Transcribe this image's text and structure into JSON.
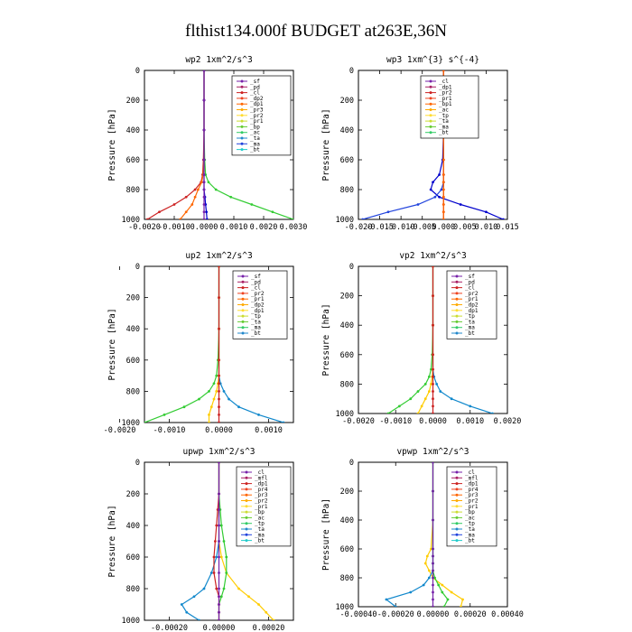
{
  "title": "flthist134.000f  BUDGET at263E,36N",
  "chart_data": [
    {
      "type": "line",
      "title": "wp2   1xm^2/s^3",
      "ylabel": "Pressure [hPa]",
      "xlim": [
        -0.002,
        0.003
      ],
      "ylim": [
        0,
        1000
      ],
      "y_inverted": true,
      "xticks": [
        "-0.0020",
        "-0.0010",
        "0.0000",
        "0.0010",
        "0.0020",
        "0.0030"
      ],
      "xtick_values": [
        -0.002,
        -0.001,
        0.0,
        0.001,
        0.002,
        0.003
      ],
      "yticks": [
        0,
        200,
        400,
        600,
        800,
        1000
      ],
      "legend": [
        "_sf",
        "_pd",
        "_cl",
        "_dp2",
        "_dp1",
        "_pr3",
        "_pr2",
        "_pr1",
        "_bp",
        "_ac",
        "_ta",
        "_ma",
        "_bt"
      ],
      "y": [
        0,
        200,
        400,
        600,
        700,
        750,
        800,
        850,
        900,
        950,
        1000
      ],
      "series": [
        {
          "label": "_pr1",
          "color": "#33cc33",
          "x": [
            0,
            0,
            0,
            2e-05,
            5e-05,
            0.00015,
            0.0004,
            0.0009,
            0.0016,
            0.0023,
            0.003
          ]
        },
        {
          "label": "_dp1",
          "color": "#cc2222",
          "x": [
            0,
            0,
            0,
            -2e-05,
            -5e-05,
            -0.0001,
            -0.0003,
            -0.0006,
            -0.001,
            -0.0015,
            -0.0019
          ]
        },
        {
          "label": "_pr3",
          "color": "#ff6600",
          "x": [
            0,
            0,
            0,
            0,
            -3e-05,
            -8e-05,
            -0.0002,
            -0.0003,
            -0.0004,
            -0.0006,
            -0.0008
          ]
        },
        {
          "label": "_bt",
          "color": "#0000cc",
          "x": [
            0,
            0,
            0,
            0,
            0,
            0,
            0,
            3e-05,
            5e-05,
            8e-05,
            0.0001
          ]
        },
        {
          "label": "_sf",
          "color": "#7722aa",
          "x": [
            0,
            0,
            0,
            0,
            0,
            0,
            0,
            0,
            0,
            0,
            0
          ]
        }
      ]
    },
    {
      "type": "line",
      "title": "wp3   1xm^{3} s^{-4}",
      "ylabel": "Pressure [hPa]",
      "xlim": [
        -0.02,
        0.015
      ],
      "ylim": [
        0,
        1000
      ],
      "y_inverted": true,
      "xticks": [
        "-0.020",
        "-0.015",
        "-0.010",
        "-0.005",
        "0.000",
        "0.005",
        "0.010",
        "0.015"
      ],
      "xtick_values": [
        -0.02,
        -0.015,
        -0.01,
        -0.005,
        0.0,
        0.005,
        0.01,
        0.015
      ],
      "yticks": [
        0,
        200,
        400,
        600,
        800,
        1000
      ],
      "legend": [
        "_cl",
        "_dp1",
        "_pr2",
        "_pr1",
        "_bp1",
        "_ac",
        "_tp",
        "_ta",
        "_ma",
        "_bt"
      ],
      "y": [
        0,
        200,
        400,
        600,
        700,
        750,
        800,
        850,
        900,
        950,
        1000
      ],
      "series": [
        {
          "label": "_ta",
          "color": "#0000cc",
          "x": [
            0,
            0,
            0,
            -0.0002,
            -0.001,
            -0.0025,
            -0.003,
            -0.001,
            0.004,
            0.01,
            0.014
          ]
        },
        {
          "label": "_tp",
          "color": "#2244dd",
          "x": [
            0,
            0,
            0,
            0,
            0,
            0,
            -0.0005,
            -0.002,
            -0.006,
            -0.013,
            -0.019
          ]
        },
        {
          "label": "_cl",
          "color": "#cc2222",
          "x": [
            0,
            0,
            0,
            0,
            0,
            0,
            0,
            0,
            0,
            0,
            0
          ]
        },
        {
          "label": "_pr1",
          "color": "#ff6600",
          "x": [
            0,
            0,
            0,
            0,
            0,
            0,
            0,
            0,
            0,
            0,
            0
          ]
        }
      ]
    },
    {
      "type": "line",
      "title": "up2   1xm^2/s^3",
      "ylabel": "Pressure [hPa]",
      "xlim": [
        -0.0015,
        0.0015
      ],
      "ylim": [
        0,
        1000
      ],
      "y_inverted": true,
      "xticks": [
        "-0.0020",
        "-0.0010",
        "0.0000",
        "0.0010"
      ],
      "xtick_values": [
        -0.002,
        -0.001,
        0.0,
        0.001
      ],
      "yticks": [
        0,
        200,
        400,
        600,
        800,
        1000
      ],
      "legend": [
        "_sf",
        "_pd",
        "_cl",
        "_pr2",
        "_pr1",
        "_dp2",
        "_dp1",
        "_tp",
        "_ta",
        "_ma",
        "_bt"
      ],
      "y": [
        0,
        200,
        400,
        600,
        700,
        750,
        800,
        850,
        900,
        950,
        1000
      ],
      "series": [
        {
          "label": "_dp1",
          "color": "#33cc33",
          "x": [
            0,
            0,
            0,
            -2e-05,
            -5e-05,
            -0.0001,
            -0.0002,
            -0.0004,
            -0.0007,
            -0.0011,
            -0.0015
          ]
        },
        {
          "label": "_ta",
          "color": "#1188cc",
          "x": [
            0,
            0,
            0,
            0,
            0,
            3e-05,
            0.0001,
            0.0002,
            0.0004,
            0.0008,
            0.0013
          ]
        },
        {
          "label": "_pr1",
          "color": "#ffcc00",
          "x": [
            0,
            0,
            0,
            0,
            0,
            -2e-05,
            -5e-05,
            -0.0001,
            -0.00015,
            -0.0002,
            -0.0002
          ]
        },
        {
          "label": "_cl",
          "color": "#cc2222",
          "x": [
            0,
            0,
            0,
            0,
            0,
            0,
            0,
            0,
            0,
            0,
            0
          ]
        }
      ]
    },
    {
      "type": "line",
      "title": "vp2   1xm^2/s^3",
      "ylabel": "Pressure [hPa]",
      "xlim": [
        -0.002,
        0.002
      ],
      "ylim": [
        0,
        1000
      ],
      "y_inverted": true,
      "xticks": [
        "-0.0020",
        "-0.0010",
        "0.0000",
        "0.0010",
        "0.0020"
      ],
      "xtick_values": [
        -0.002,
        -0.001,
        0.0,
        0.001,
        0.002
      ],
      "yticks": [
        0,
        200,
        400,
        600,
        800,
        1000
      ],
      "legend": [
        "_sf",
        "_pd",
        "_cl",
        "_pr2",
        "_pr1",
        "_dp2",
        "_dp1",
        "_tp",
        "_ta",
        "_ma",
        "_bt"
      ],
      "y": [
        0,
        200,
        400,
        600,
        700,
        750,
        800,
        850,
        900,
        950,
        1000
      ],
      "series": [
        {
          "label": "_dp1",
          "color": "#33cc33",
          "x": [
            0,
            0,
            0,
            -2e-05,
            -5e-05,
            -0.0001,
            -0.0002,
            -0.0004,
            -0.0006,
            -0.0009,
            -0.0012
          ]
        },
        {
          "label": "_ta",
          "color": "#1188cc",
          "x": [
            0,
            0,
            0,
            0,
            0,
            3e-05,
            0.0001,
            0.0002,
            0.0005,
            0.001,
            0.0016
          ]
        },
        {
          "label": "_pr1",
          "color": "#ffcc00",
          "x": [
            0,
            0,
            0,
            0,
            0,
            -2e-05,
            -5e-05,
            -0.0001,
            -0.0002,
            -0.0003,
            -0.0004
          ]
        },
        {
          "label": "_cl",
          "color": "#cc2222",
          "x": [
            0,
            0,
            0,
            0,
            0,
            0,
            0,
            0,
            0,
            0,
            0
          ]
        }
      ]
    },
    {
      "type": "line",
      "title": "upwp   1xm^2/s^3",
      "ylabel": "Pressure [hPa]",
      "xlim": [
        -0.0003,
        0.0003
      ],
      "ylim": [
        0,
        1000
      ],
      "y_inverted": true,
      "xticks": [
        "-0.00020",
        "0.00000",
        "0.00020"
      ],
      "xtick_values": [
        -0.0002,
        0.0,
        0.0002
      ],
      "yticks": [
        0,
        200,
        400,
        600,
        800,
        1000
      ],
      "legend": [
        "_cl",
        "_mfl",
        "_dp1",
        "_pr4",
        "_pr3",
        "_pr2",
        "_pr1",
        "_bp",
        "_ac",
        "_tp",
        "_ta",
        "_ma",
        "_bt"
      ],
      "y": [
        0,
        200,
        300,
        400,
        500,
        600,
        700,
        800,
        850,
        900,
        950,
        1000
      ],
      "series": [
        {
          "label": "_pr1",
          "color": "#ffcc00",
          "x": [
            0,
            0,
            0,
            0,
            0,
            1e-05,
            3e-05,
            8e-05,
            0.00012,
            0.00016,
            0.00019,
            0.00022
          ]
        },
        {
          "label": "_ta",
          "color": "#1188cc",
          "x": [
            0,
            0,
            0,
            0,
            0,
            -1e-05,
            -3e-05,
            -6e-05,
            -0.0001,
            -0.00015,
            -0.00013,
            -8e-05
          ]
        },
        {
          "label": "_ac",
          "color": "#33cc33",
          "x": [
            0,
            0,
            5e-06,
            1e-05,
            2e-05,
            3e-05,
            3e-05,
            2e-05,
            1e-05,
            0,
            0,
            0
          ]
        },
        {
          "label": "_dp1",
          "color": "#cc2222",
          "x": [
            0,
            0,
            -5e-06,
            -1e-05,
            -1.5e-05,
            -2e-05,
            -2e-05,
            -1e-05,
            0,
            0,
            0,
            0
          ]
        },
        {
          "label": "_cl",
          "color": "#7722aa",
          "x": [
            0,
            0,
            0,
            0,
            0,
            0,
            0,
            0,
            0,
            0,
            0,
            0
          ]
        }
      ]
    },
    {
      "type": "line",
      "title": "vpwp   1xm^2/s^3",
      "ylabel": "Pressure [hPa]",
      "xlim": [
        -0.0004,
        0.0004
      ],
      "ylim": [
        0,
        1000
      ],
      "y_inverted": true,
      "xticks": [
        "-0.00040",
        "-0.00020",
        "0.00000",
        "0.00020",
        "0.00040"
      ],
      "xtick_values": [
        -0.0004,
        -0.0002,
        0.0,
        0.0002,
        0.0004
      ],
      "yticks": [
        0,
        200,
        400,
        600,
        800,
        1000
      ],
      "legend": [
        "_cl",
        "_mfl",
        "_dp1",
        "_pr4",
        "_pr3",
        "_pr2",
        "_pr1",
        "_bp",
        "_ac",
        "_tp",
        "_ta",
        "_ma",
        "_bt"
      ],
      "y": [
        0,
        200,
        400,
        600,
        650,
        700,
        750,
        800,
        850,
        900,
        950,
        1000
      ],
      "series": [
        {
          "label": "_pr1",
          "color": "#ffcc00",
          "x": [
            0,
            0,
            0,
            -1e-05,
            -3e-05,
            -4e-05,
            -2e-05,
            0,
            5e-05,
            0.0001,
            0.00016,
            0.00015
          ]
        },
        {
          "label": "_ta",
          "color": "#1188cc",
          "x": [
            0,
            0,
            0,
            0,
            0,
            0,
            0,
            -2e-05,
            -5e-05,
            -0.00012,
            -0.00025,
            -0.0002
          ]
        },
        {
          "label": "_ac",
          "color": "#33cc33",
          "x": [
            0,
            0,
            0,
            0,
            0,
            0,
            0,
            1e-05,
            3e-05,
            5e-05,
            8e-05,
            6e-05
          ]
        },
        {
          "label": "_cl",
          "color": "#7722aa",
          "x": [
            0,
            0,
            0,
            0,
            0,
            0,
            0,
            0,
            0,
            0,
            0,
            0
          ]
        }
      ]
    }
  ]
}
